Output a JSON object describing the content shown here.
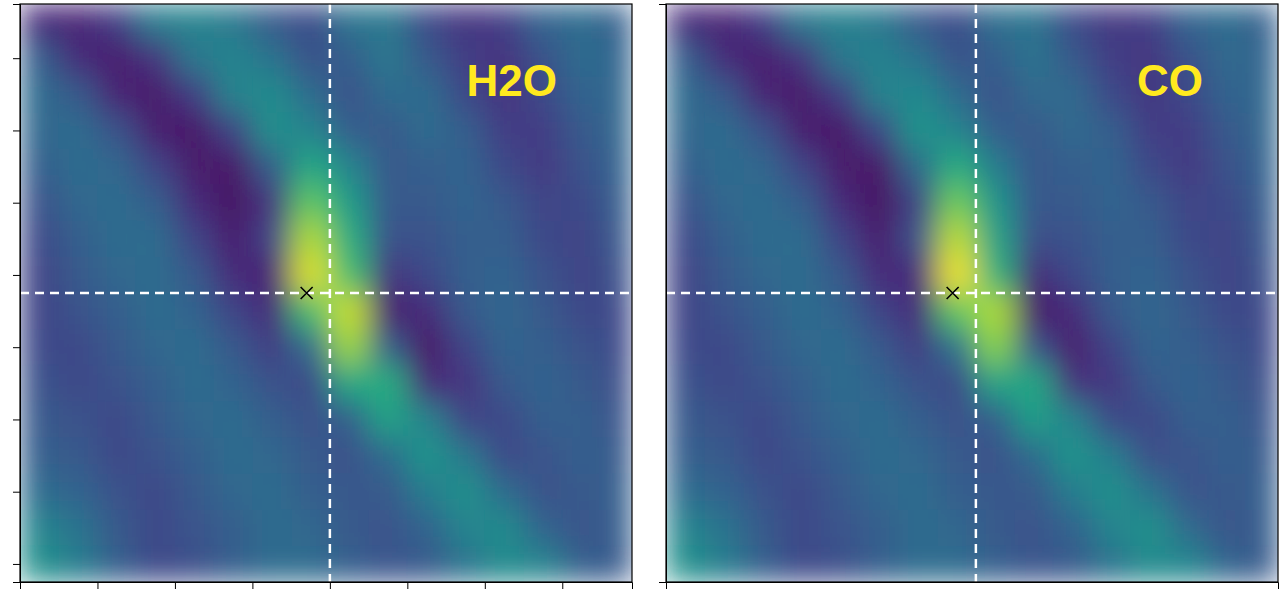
{
  "chart_data": [
    {
      "type": "heatmap",
      "title": "H2O",
      "xlim": [
        0,
        7.9
      ],
      "ylim": [
        0,
        8
      ],
      "xticks": [
        0,
        1,
        2,
        3,
        4,
        5,
        6,
        7
      ],
      "yticks": [
        0.25,
        1.25,
        2.25,
        3.25,
        4.25,
        5.25,
        6.25,
        7.25
      ],
      "tick_labels": false,
      "grid": false,
      "marker": "x",
      "zlim": [
        0,
        1
      ],
      "x_edges": [
        0,
        0.5,
        1,
        1.5,
        2,
        2.5,
        3,
        3.5,
        4,
        4.5,
        5,
        5.5,
        6,
        6.5,
        7,
        7.5,
        7.9
      ],
      "y_edges": [
        8,
        7.5,
        7,
        6.5,
        6,
        5.5,
        5,
        4.5,
        4,
        3.5,
        3,
        2.5,
        2,
        1.5,
        1,
        0.5,
        0
      ],
      "z": [
        [
          0.12,
          0.1,
          0.18,
          0.42,
          0.45,
          0.4,
          0.28,
          0.22,
          0.38,
          0.4,
          0.22,
          0.15,
          0.18,
          0.32,
          0.35,
          0.3
        ],
        [
          0.3,
          0.12,
          0.08,
          0.15,
          0.4,
          0.45,
          0.38,
          0.25,
          0.3,
          0.4,
          0.28,
          0.18,
          0.15,
          0.25,
          0.35,
          0.32
        ],
        [
          0.35,
          0.28,
          0.1,
          0.07,
          0.18,
          0.45,
          0.48,
          0.35,
          0.25,
          0.35,
          0.35,
          0.22,
          0.15,
          0.22,
          0.32,
          0.33
        ],
        [
          0.33,
          0.35,
          0.25,
          0.08,
          0.06,
          0.2,
          0.5,
          0.45,
          0.3,
          0.28,
          0.35,
          0.3,
          0.18,
          0.18,
          0.28,
          0.33
        ],
        [
          0.3,
          0.35,
          0.33,
          0.2,
          0.07,
          0.06,
          0.3,
          0.6,
          0.45,
          0.28,
          0.3,
          0.32,
          0.22,
          0.17,
          0.25,
          0.32
        ],
        [
          0.25,
          0.33,
          0.35,
          0.3,
          0.12,
          0.05,
          0.15,
          0.75,
          0.55,
          0.28,
          0.28,
          0.32,
          0.28,
          0.2,
          0.22,
          0.3
        ],
        [
          0.22,
          0.3,
          0.35,
          0.35,
          0.2,
          0.08,
          0.2,
          0.88,
          0.62,
          0.25,
          0.25,
          0.3,
          0.3,
          0.22,
          0.2,
          0.28
        ],
        [
          0.2,
          0.28,
          0.33,
          0.35,
          0.28,
          0.12,
          0.1,
          0.95,
          0.7,
          0.15,
          0.22,
          0.3,
          0.32,
          0.25,
          0.2,
          0.25
        ],
        [
          0.2,
          0.25,
          0.3,
          0.35,
          0.32,
          0.2,
          0.12,
          0.7,
          0.92,
          0.08,
          0.12,
          0.28,
          0.33,
          0.28,
          0.22,
          0.22
        ],
        [
          0.22,
          0.22,
          0.28,
          0.33,
          0.35,
          0.28,
          0.18,
          0.35,
          0.85,
          0.3,
          0.06,
          0.2,
          0.32,
          0.3,
          0.25,
          0.22
        ],
        [
          0.25,
          0.22,
          0.25,
          0.3,
          0.35,
          0.32,
          0.25,
          0.22,
          0.6,
          0.62,
          0.12,
          0.15,
          0.28,
          0.32,
          0.28,
          0.24
        ],
        [
          0.28,
          0.25,
          0.22,
          0.28,
          0.33,
          0.35,
          0.3,
          0.25,
          0.3,
          0.58,
          0.45,
          0.2,
          0.22,
          0.3,
          0.3,
          0.26
        ],
        [
          0.3,
          0.28,
          0.22,
          0.25,
          0.3,
          0.35,
          0.33,
          0.28,
          0.25,
          0.35,
          0.52,
          0.4,
          0.22,
          0.26,
          0.3,
          0.28
        ],
        [
          0.35,
          0.32,
          0.25,
          0.22,
          0.28,
          0.33,
          0.35,
          0.3,
          0.27,
          0.28,
          0.42,
          0.5,
          0.35,
          0.25,
          0.28,
          0.3
        ],
        [
          0.45,
          0.38,
          0.28,
          0.22,
          0.26,
          0.3,
          0.35,
          0.33,
          0.28,
          0.26,
          0.32,
          0.45,
          0.48,
          0.32,
          0.26,
          0.3
        ],
        [
          0.5,
          0.42,
          0.3,
          0.22,
          0.24,
          0.3,
          0.35,
          0.35,
          0.3,
          0.26,
          0.28,
          0.38,
          0.48,
          0.45,
          0.3,
          0.28
        ]
      ],
      "crosshair": {
        "x": 4,
        "y": 4
      },
      "marker_point": {
        "x": 3.7,
        "y": 4
      }
    },
    {
      "type": "heatmap",
      "title": "CO",
      "xlim": [
        0,
        7.9
      ],
      "ylim": [
        0,
        8
      ],
      "tick_labels": false,
      "grid": false,
      "marker": "x",
      "zlim": [
        0,
        1
      ],
      "x_edges": [
        0,
        0.5,
        1,
        1.5,
        2,
        2.5,
        3,
        3.5,
        4,
        4.5,
        5,
        5.5,
        6,
        6.5,
        7,
        7.5,
        7.9
      ],
      "y_edges": [
        8,
        7.5,
        7,
        6.5,
        6,
        5.5,
        5,
        4.5,
        4,
        3.5,
        3,
        2.5,
        2,
        1.5,
        1,
        0.5,
        0
      ],
      "z": [
        [
          0.12,
          0.1,
          0.18,
          0.4,
          0.44,
          0.4,
          0.28,
          0.22,
          0.36,
          0.38,
          0.22,
          0.16,
          0.18,
          0.32,
          0.35,
          0.3
        ],
        [
          0.3,
          0.12,
          0.08,
          0.15,
          0.4,
          0.44,
          0.38,
          0.25,
          0.3,
          0.38,
          0.28,
          0.18,
          0.16,
          0.25,
          0.34,
          0.32
        ],
        [
          0.35,
          0.28,
          0.1,
          0.07,
          0.18,
          0.45,
          0.47,
          0.35,
          0.25,
          0.34,
          0.34,
          0.22,
          0.16,
          0.22,
          0.32,
          0.33
        ],
        [
          0.33,
          0.35,
          0.25,
          0.08,
          0.06,
          0.22,
          0.52,
          0.45,
          0.3,
          0.28,
          0.34,
          0.3,
          0.18,
          0.18,
          0.28,
          0.33
        ],
        [
          0.3,
          0.35,
          0.33,
          0.2,
          0.07,
          0.06,
          0.35,
          0.62,
          0.42,
          0.27,
          0.3,
          0.32,
          0.22,
          0.17,
          0.25,
          0.32
        ],
        [
          0.25,
          0.33,
          0.35,
          0.3,
          0.12,
          0.05,
          0.2,
          0.78,
          0.52,
          0.27,
          0.28,
          0.32,
          0.28,
          0.2,
          0.22,
          0.3
        ],
        [
          0.22,
          0.3,
          0.35,
          0.35,
          0.2,
          0.08,
          0.25,
          0.9,
          0.58,
          0.24,
          0.25,
          0.3,
          0.3,
          0.22,
          0.2,
          0.28
        ],
        [
          0.2,
          0.28,
          0.33,
          0.35,
          0.28,
          0.12,
          0.12,
          0.98,
          0.65,
          0.12,
          0.22,
          0.3,
          0.32,
          0.25,
          0.2,
          0.25
        ],
        [
          0.2,
          0.25,
          0.3,
          0.35,
          0.32,
          0.2,
          0.12,
          0.75,
          0.88,
          0.06,
          0.12,
          0.28,
          0.33,
          0.28,
          0.22,
          0.22
        ],
        [
          0.22,
          0.22,
          0.28,
          0.33,
          0.35,
          0.28,
          0.18,
          0.38,
          0.82,
          0.25,
          0.08,
          0.2,
          0.32,
          0.3,
          0.25,
          0.22
        ],
        [
          0.25,
          0.22,
          0.25,
          0.3,
          0.35,
          0.32,
          0.25,
          0.22,
          0.58,
          0.6,
          0.14,
          0.16,
          0.28,
          0.32,
          0.28,
          0.24
        ],
        [
          0.28,
          0.25,
          0.22,
          0.28,
          0.33,
          0.35,
          0.3,
          0.25,
          0.3,
          0.56,
          0.45,
          0.22,
          0.22,
          0.3,
          0.3,
          0.26
        ],
        [
          0.3,
          0.28,
          0.22,
          0.25,
          0.3,
          0.35,
          0.33,
          0.28,
          0.25,
          0.35,
          0.52,
          0.42,
          0.24,
          0.26,
          0.3,
          0.28
        ],
        [
          0.35,
          0.32,
          0.25,
          0.22,
          0.28,
          0.33,
          0.35,
          0.3,
          0.27,
          0.28,
          0.42,
          0.5,
          0.38,
          0.26,
          0.28,
          0.3
        ],
        [
          0.45,
          0.38,
          0.28,
          0.22,
          0.26,
          0.3,
          0.35,
          0.33,
          0.28,
          0.26,
          0.32,
          0.45,
          0.5,
          0.34,
          0.26,
          0.3
        ],
        [
          0.5,
          0.42,
          0.3,
          0.22,
          0.24,
          0.3,
          0.35,
          0.35,
          0.3,
          0.26,
          0.28,
          0.38,
          0.48,
          0.46,
          0.32,
          0.28
        ]
      ],
      "crosshair": {
        "x": 4,
        "y": 4
      },
      "marker_point": {
        "x": 3.7,
        "y": 4
      }
    }
  ]
}
